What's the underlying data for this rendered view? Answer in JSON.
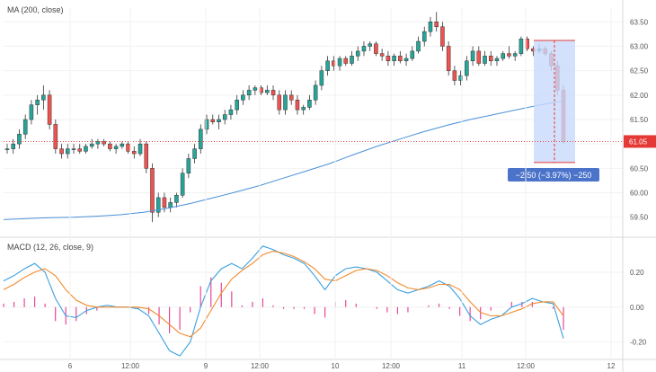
{
  "chart_data": [
    {
      "type": "candlestick",
      "title": "MA (200, close)",
      "y_ticks": [
        "63.50",
        "63.00",
        "62.50",
        "62.00",
        "61.50",
        "61.00",
        "60.50",
        "60.00",
        "59.50"
      ],
      "ylim": [
        59.2,
        63.8
      ],
      "x_ticks": [
        "6",
        "12:00",
        "9",
        "12:00",
        "10",
        "12:00",
        "11",
        "12:00",
        "12"
      ],
      "last_price": "61.05",
      "measure_label": "−2.50 (−3.97%) −250",
      "colors": {
        "up": "#26a69a",
        "down": "#ef5350",
        "ma": "#4a90d9",
        "last_price": "#e53935",
        "measure_fill": "#c9dafb",
        "axis_bg": "#ffffff"
      },
      "candles": [
        [
          60.9,
          61.0,
          60.8,
          60.9
        ],
        [
          60.9,
          61.1,
          60.8,
          61.0
        ],
        [
          61.0,
          61.3,
          60.9,
          61.2
        ],
        [
          61.2,
          61.6,
          61.1,
          61.5
        ],
        [
          61.5,
          61.9,
          61.4,
          61.8
        ],
        [
          61.8,
          62.0,
          61.6,
          61.9
        ],
        [
          61.9,
          62.2,
          61.7,
          62.0
        ],
        [
          62.0,
          62.1,
          61.3,
          61.4
        ],
        [
          61.4,
          61.5,
          60.8,
          60.9
        ],
        [
          60.9,
          61.0,
          60.7,
          60.8
        ],
        [
          60.8,
          61.0,
          60.7,
          60.9
        ],
        [
          60.9,
          61.0,
          60.8,
          60.9
        ],
        [
          60.9,
          61.0,
          60.8,
          60.85
        ],
        [
          60.85,
          61.0,
          60.8,
          60.95
        ],
        [
          60.95,
          61.1,
          60.9,
          61.0
        ],
        [
          61.0,
          61.1,
          60.9,
          61.05
        ],
        [
          61.05,
          61.1,
          60.95,
          61.0
        ],
        [
          61.0,
          61.05,
          60.85,
          60.9
        ],
        [
          60.9,
          61.0,
          60.8,
          60.95
        ],
        [
          60.95,
          61.05,
          60.9,
          61.0
        ],
        [
          61.0,
          61.05,
          60.8,
          60.85
        ],
        [
          60.85,
          60.95,
          60.7,
          60.8
        ],
        [
          60.8,
          61.1,
          60.75,
          61.0
        ],
        [
          61.0,
          61.05,
          60.4,
          60.5
        ],
        [
          60.5,
          60.6,
          59.4,
          59.6
        ],
        [
          59.6,
          60.0,
          59.5,
          59.9
        ],
        [
          59.9,
          60.0,
          59.6,
          59.7
        ],
        [
          59.7,
          59.9,
          59.6,
          59.8
        ],
        [
          59.8,
          60.0,
          59.7,
          59.95
        ],
        [
          59.95,
          60.5,
          59.9,
          60.4
        ],
        [
          60.4,
          60.8,
          60.3,
          60.7
        ],
        [
          60.7,
          61.0,
          60.6,
          60.9
        ],
        [
          60.9,
          61.4,
          60.8,
          61.3
        ],
        [
          61.3,
          61.6,
          61.2,
          61.5
        ],
        [
          61.5,
          61.6,
          61.4,
          61.45
        ],
        [
          61.45,
          61.6,
          61.3,
          61.5
        ],
        [
          61.5,
          61.7,
          61.4,
          61.6
        ],
        [
          61.6,
          61.8,
          61.5,
          61.7
        ],
        [
          61.7,
          62.0,
          61.6,
          61.9
        ],
        [
          61.9,
          62.1,
          61.8,
          62.0
        ],
        [
          62.0,
          62.2,
          61.9,
          62.1
        ],
        [
          62.1,
          62.2,
          62.0,
          62.15
        ],
        [
          62.15,
          62.2,
          62.0,
          62.05
        ],
        [
          62.05,
          62.2,
          62.0,
          62.1
        ],
        [
          62.1,
          62.2,
          61.9,
          62.0
        ],
        [
          62.0,
          62.1,
          61.6,
          61.7
        ],
        [
          61.7,
          62.1,
          61.6,
          62.0
        ],
        [
          62.0,
          62.1,
          61.8,
          61.9
        ],
        [
          61.9,
          62.0,
          61.6,
          61.7
        ],
        [
          61.7,
          61.8,
          61.6,
          61.75
        ],
        [
          61.75,
          62.0,
          61.7,
          61.9
        ],
        [
          61.9,
          62.3,
          61.8,
          62.2
        ],
        [
          62.2,
          62.6,
          62.1,
          62.5
        ],
        [
          62.5,
          62.8,
          62.4,
          62.7
        ],
        [
          62.7,
          62.8,
          62.5,
          62.6
        ],
        [
          62.6,
          62.8,
          62.5,
          62.75
        ],
        [
          62.75,
          62.8,
          62.6,
          62.65
        ],
        [
          62.65,
          62.9,
          62.6,
          62.8
        ],
        [
          62.8,
          63.0,
          62.7,
          62.9
        ],
        [
          62.9,
          63.1,
          62.8,
          63.0
        ],
        [
          63.0,
          63.1,
          62.9,
          63.05
        ],
        [
          63.05,
          63.1,
          62.8,
          62.85
        ],
        [
          62.85,
          62.95,
          62.7,
          62.8
        ],
        [
          62.8,
          62.9,
          62.6,
          62.7
        ],
        [
          62.7,
          62.85,
          62.6,
          62.8
        ],
        [
          62.8,
          62.9,
          62.65,
          62.7
        ],
        [
          62.7,
          62.85,
          62.6,
          62.75
        ],
        [
          62.75,
          63.0,
          62.7,
          62.9
        ],
        [
          62.9,
          63.2,
          62.85,
          63.1
        ],
        [
          63.1,
          63.4,
          63.0,
          63.3
        ],
        [
          63.3,
          63.6,
          63.2,
          63.5
        ],
        [
          63.5,
          63.7,
          63.3,
          63.4
        ],
        [
          63.4,
          63.5,
          62.9,
          63.0
        ],
        [
          63.0,
          63.1,
          62.4,
          62.5
        ],
        [
          62.5,
          62.6,
          62.2,
          62.3
        ],
        [
          62.3,
          62.5,
          62.2,
          62.4
        ],
        [
          62.4,
          62.8,
          62.3,
          62.7
        ],
        [
          62.7,
          63.0,
          62.6,
          62.9
        ],
        [
          62.9,
          63.0,
          62.6,
          62.65
        ],
        [
          62.65,
          62.9,
          62.6,
          62.8
        ],
        [
          62.8,
          62.9,
          62.6,
          62.7
        ],
        [
          62.7,
          62.8,
          62.6,
          62.75
        ],
        [
          62.75,
          62.9,
          62.7,
          62.85
        ],
        [
          62.85,
          63.0,
          62.75,
          62.8
        ],
        [
          62.8,
          62.9,
          62.7,
          62.85
        ],
        [
          62.85,
          63.2,
          62.8,
          63.15
        ],
        [
          63.15,
          63.2,
          62.9,
          62.95
        ],
        [
          62.95,
          63.0,
          62.8,
          62.9
        ],
        [
          62.9,
          63.05,
          62.85,
          62.95
        ],
        [
          62.95,
          63.0,
          62.8,
          62.85
        ],
        [
          62.85,
          62.9,
          62.5,
          62.6
        ],
        [
          62.6,
          62.7,
          62.0,
          62.1
        ],
        [
          62.1,
          62.2,
          61.0,
          61.05
        ]
      ],
      "ma_line": [
        59.45,
        59.47,
        59.49,
        59.5,
        59.52,
        59.55,
        59.6,
        59.68,
        59.78,
        59.9,
        60.02,
        60.15,
        60.3,
        60.45,
        60.6,
        60.78,
        60.95,
        61.1,
        61.25,
        61.38,
        61.5,
        61.6,
        61.7,
        61.8,
        61.88
      ]
    },
    {
      "type": "line",
      "title": "MACD (12, 26, close, 9)",
      "y_ticks": [
        "0.20",
        "0.00",
        "-0.20"
      ],
      "ylim": [
        -0.3,
        0.38
      ],
      "series": [
        {
          "values": [
            0.15,
            0.18,
            0.22,
            0.25,
            0.2,
            0.05,
            -0.05,
            -0.06,
            -0.02,
            0.0,
            0.01,
            0.0,
            0.0,
            -0.01,
            -0.05,
            -0.15,
            -0.25,
            -0.28,
            -0.2,
            0.0,
            0.15,
            0.22,
            0.25,
            0.22,
            0.28,
            0.35,
            0.33,
            0.3,
            0.28,
            0.25,
            0.18,
            0.1,
            0.18,
            0.22,
            0.23,
            0.22,
            0.2,
            0.15,
            0.1,
            0.08,
            0.1,
            0.12,
            0.15,
            0.12,
            0.05,
            -0.05,
            -0.1,
            -0.07,
            -0.05,
            0.0,
            0.02,
            0.05,
            0.03,
            0.02,
            -0.18
          ],
          "color": "#3aa0e0"
        },
        {
          "values": [
            0.1,
            0.13,
            0.17,
            0.2,
            0.22,
            0.18,
            0.1,
            0.04,
            0.01,
            0.0,
            0.0,
            0.0,
            0.0,
            0.0,
            -0.01,
            -0.05,
            -0.1,
            -0.15,
            -0.17,
            -0.12,
            -0.02,
            0.08,
            0.16,
            0.21,
            0.25,
            0.3,
            0.32,
            0.31,
            0.29,
            0.26,
            0.22,
            0.16,
            0.15,
            0.18,
            0.21,
            0.22,
            0.21,
            0.18,
            0.14,
            0.11,
            0.1,
            0.11,
            0.13,
            0.13,
            0.1,
            0.03,
            -0.03,
            -0.05,
            -0.05,
            -0.03,
            -0.01,
            0.02,
            0.03,
            0.03,
            -0.05
          ],
          "color": "#f28a2b"
        }
      ],
      "histogram": [
        0.02,
        0.03,
        0.05,
        0.06,
        0.02,
        -0.08,
        -0.1,
        -0.08,
        -0.04,
        -0.02,
        0.0,
        0.0,
        0.0,
        -0.01,
        -0.04,
        -0.1,
        -0.15,
        -0.13,
        -0.03,
        0.12,
        0.17,
        0.14,
        0.09,
        0.01,
        0.03,
        0.05,
        0.01,
        -0.01,
        -0.01,
        -0.01,
        -0.04,
        -0.06,
        0.03,
        0.04,
        0.02,
        0.0,
        -0.01,
        -0.03,
        -0.04,
        -0.03,
        0.0,
        0.01,
        0.02,
        -0.01,
        -0.05,
        -0.08,
        -0.07,
        -0.02,
        0.0,
        0.03,
        0.03,
        0.03,
        0.0,
        -0.01,
        -0.13
      ],
      "histogram_color": "#e6479a"
    }
  ]
}
